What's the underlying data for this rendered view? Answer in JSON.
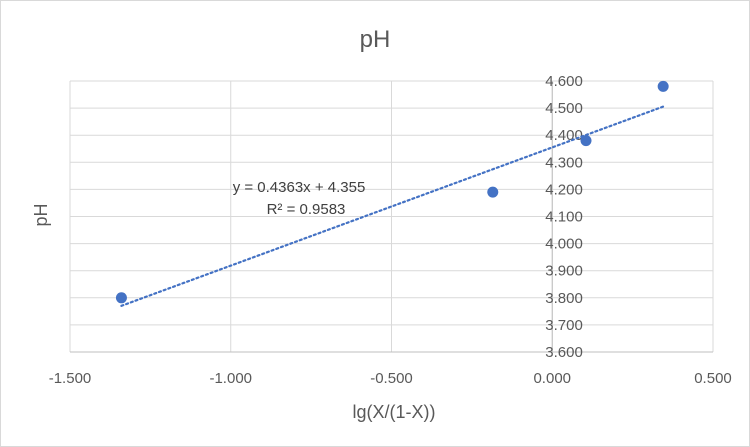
{
  "chart_data": {
    "type": "scatter",
    "title": "pH",
    "xlabel": "lg(X/(1-X))",
    "ylabel": "pH",
    "xlim": [
      -1.5,
      0.5
    ],
    "ylim": [
      3.6,
      4.6
    ],
    "x_ticks": [
      "-1.500",
      "-1.000",
      "-0.500",
      "0.000",
      "0.500"
    ],
    "x_tick_values": [
      -1.5,
      -1.0,
      -0.5,
      0.0,
      0.5
    ],
    "y_ticks": [
      "3.600",
      "3.700",
      "3.800",
      "3.900",
      "4.000",
      "4.100",
      "4.200",
      "4.300",
      "4.400",
      "4.500",
      "4.600"
    ],
    "y_tick_values": [
      3.6,
      3.7,
      3.8,
      3.9,
      4.0,
      4.1,
      4.2,
      4.3,
      4.4,
      4.5,
      4.6
    ],
    "y_axis_position_x": 0.0,
    "grid": true,
    "series": [
      {
        "x": [
          -1.34,
          -0.185,
          0.105,
          0.345
        ],
        "y": [
          3.8,
          4.19,
          4.38,
          4.58
        ],
        "color": "#4472c4"
      }
    ],
    "trendline": {
      "type": "linear",
      "slope": 0.4363,
      "intercept": 4.355,
      "x_range": [
        -1.34,
        0.345
      ],
      "equation": "y = 0.4363x + 4.355",
      "r_squared": "R² = 0.9583",
      "color": "#4472c4",
      "style": "dotted"
    }
  }
}
